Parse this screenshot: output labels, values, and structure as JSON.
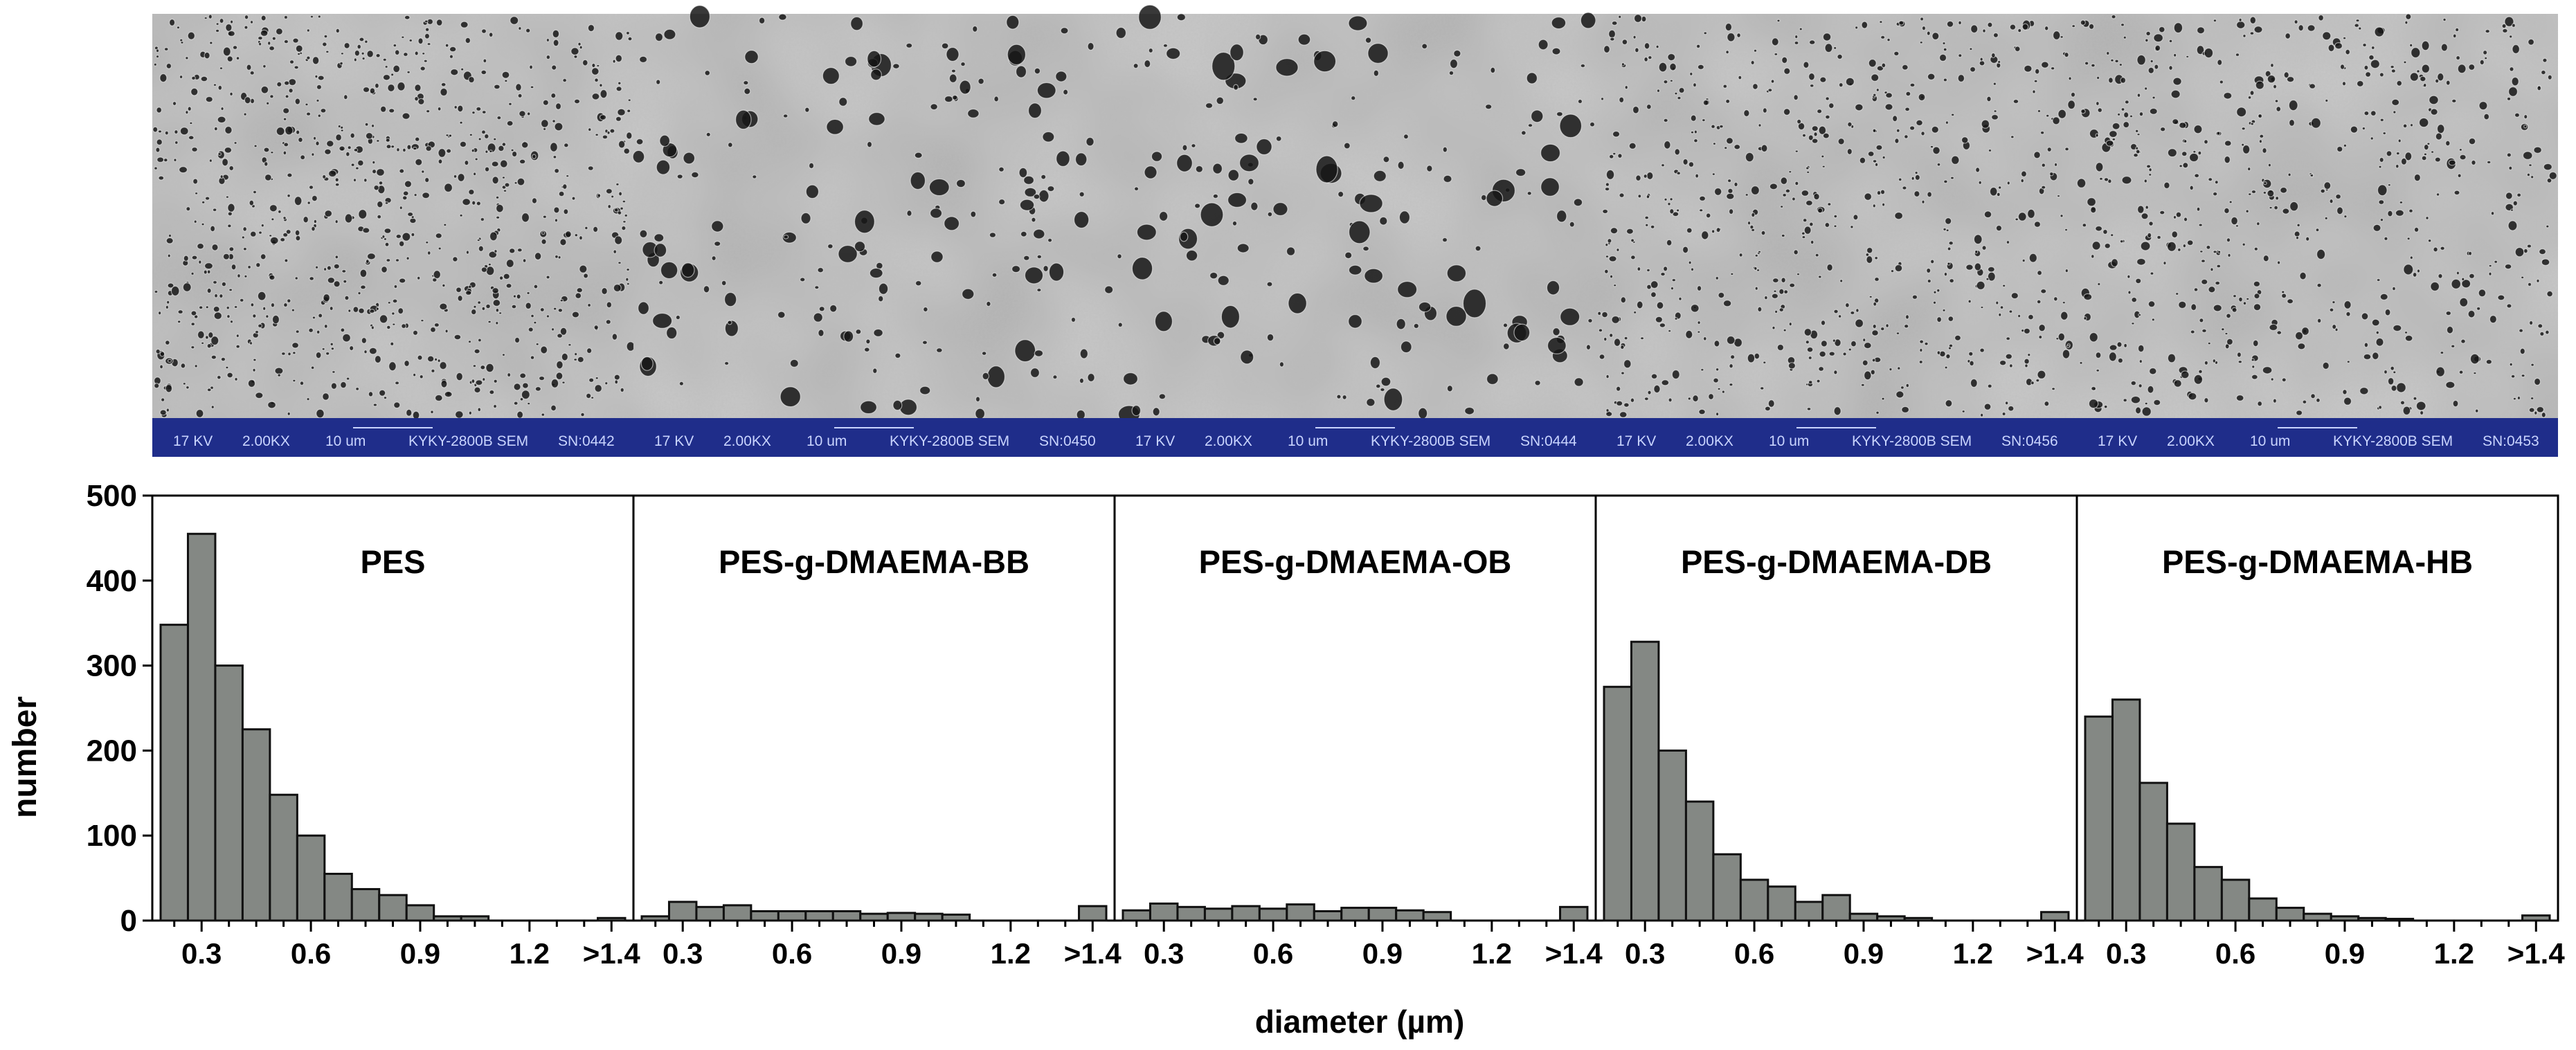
{
  "chart_data": {
    "type": "bar",
    "shared": {
      "ylabel": "number",
      "xlabel": "diameter (µm)",
      "ylim": [
        0,
        500
      ],
      "yticks": [
        0,
        100,
        200,
        300,
        400,
        500
      ],
      "xtick_labels": [
        "0.3",
        "0.6",
        "0.9",
        "1.2",
        ">1.4"
      ],
      "bin_centers": [
        0.25,
        0.325,
        0.4,
        0.475,
        0.55,
        0.625,
        0.7,
        0.775,
        0.85,
        0.925,
        1.0,
        1.075,
        1.15,
        1.225,
        1.3,
        1.375,
        1.45
      ],
      "bin_labels": [
        "",
        "0.3",
        "",
        "",
        "",
        "0.6",
        "",
        "",
        "",
        "0.9",
        "",
        "",
        "",
        "1.2",
        "",
        "",
        ">1.4"
      ]
    },
    "panels": [
      {
        "title": "PES",
        "values": [
          348,
          455,
          300,
          225,
          148,
          100,
          55,
          37,
          30,
          18,
          5,
          5,
          0,
          0,
          0,
          0,
          3
        ]
      },
      {
        "title": "PES-g-DMAEMA-BB",
        "values": [
          5,
          22,
          16,
          18,
          11,
          11,
          11,
          11,
          8,
          9,
          8,
          7,
          0,
          0,
          0,
          0,
          17
        ]
      },
      {
        "title": "PES-g-DMAEMA-OB",
        "values": [
          12,
          20,
          16,
          14,
          17,
          14,
          19,
          11,
          15,
          15,
          12,
          10,
          0,
          0,
          0,
          0,
          16
        ]
      },
      {
        "title": "PES-g-DMAEMA-DB",
        "values": [
          275,
          328,
          200,
          140,
          78,
          48,
          40,
          22,
          30,
          8,
          5,
          3,
          0,
          0,
          0,
          0,
          10
        ]
      },
      {
        "title": "PES-g-DMAEMA-HB",
        "values": [
          240,
          260,
          162,
          114,
          63,
          48,
          26,
          15,
          8,
          5,
          3,
          2,
          0,
          0,
          0,
          0,
          6
        ]
      }
    ]
  },
  "sem_images": [
    {
      "panel": "PES",
      "bar_text": {
        "kv": "17 KV",
        "mag": "2.00KX",
        "scale": "10 um",
        "instrument": "KYKY-2800B SEM",
        "sn": "SN:0442"
      }
    },
    {
      "panel": "PES-g-DMAEMA-BB",
      "bar_text": {
        "kv": "17 KV",
        "mag": "2.00KX",
        "scale": "10 um",
        "instrument": "KYKY-2800B SEM",
        "sn": "SN:0450"
      }
    },
    {
      "panel": "PES-g-DMAEMA-OB",
      "bar_text": {
        "kv": "17 KV",
        "mag": "2.00KX",
        "scale": "10 um",
        "instrument": "KYKY-2800B SEM",
        "sn": "SN:0444"
      }
    },
    {
      "panel": "PES-g-DMAEMA-DB",
      "bar_text": {
        "kv": "17 KV",
        "mag": "2.00KX",
        "scale": "10 um",
        "instrument": "KYKY-2800B SEM",
        "sn": "SN:0456"
      }
    },
    {
      "panel": "PES-g-DMAEMA-HB",
      "bar_text": {
        "kv": "17 KV",
        "mag": "2.00KX",
        "scale": "10 um",
        "instrument": "KYKY-2800B SEM",
        "sn": "SN:0453"
      }
    }
  ],
  "colors": {
    "bar_fill": "#848884",
    "bar_stroke": "#111111",
    "info_bar": "#1f2d8a",
    "info_text": "#c9d4ff",
    "sem_base": "#c7c7c7",
    "pore": "#161616"
  }
}
